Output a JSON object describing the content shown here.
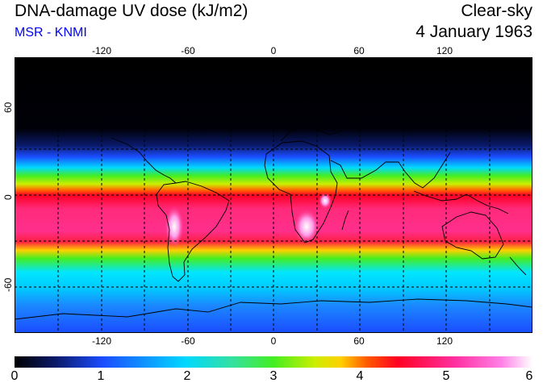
{
  "header": {
    "title": "DNA-damage UV dose (kJ/m2)",
    "source": "MSR - KNMI",
    "mode": "Clear-sky",
    "date": "4 January 1963"
  },
  "map": {
    "projection": "equirectangular",
    "lon_range": [
      -180,
      180
    ],
    "lat_range": [
      -90,
      90
    ],
    "lon_ticks": [
      "-120",
      "-60",
      "0",
      "60",
      "120"
    ],
    "lat_ticks": [
      "60",
      "0",
      "-60"
    ]
  },
  "colorbar": {
    "min": 0,
    "max": 6,
    "tick_labels": [
      "0",
      "1",
      "2",
      "3",
      "4",
      "5",
      "6"
    ],
    "colors": [
      "#000000",
      "#0a1a6a",
      "#1b4cff",
      "#00d8ff",
      "#33e0a0",
      "#44ee22",
      "#ccee00",
      "#ffd000",
      "#ff5a00",
      "#ff0022",
      "#ff2fa0",
      "#ff80e6",
      "#ffffff"
    ]
  }
}
